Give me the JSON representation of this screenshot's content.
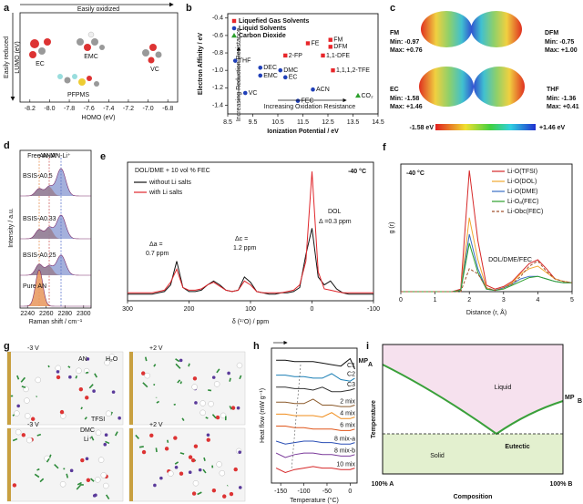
{
  "panel_labels": [
    "a",
    "b",
    "c",
    "d",
    "e",
    "f",
    "g",
    "h",
    "i"
  ],
  "panel_a": {
    "top_arrow": "Easily oxidized",
    "left_arrow": "Easily reduced",
    "ylabel": "LUMO (eV)",
    "xlabel": "HOMO (eV)",
    "xlim": [
      -8.3,
      -6.7
    ],
    "xticks": [
      -8.2,
      {
        "value": -8.0,
        "label": "-8.0"
      },
      -7.8,
      -7.6,
      -7.4,
      -7.2,
      {
        "value": -7.0,
        "label": "-7.0"
      },
      -6.8
    ],
    "molecules": [
      "EC",
      "EMC",
      "PFPMS",
      "VC"
    ]
  },
  "chart_data": [
    {
      "type": "scatter",
      "xlabel": "Ionization Potential / eV",
      "ylabel": "Electron Affinity / eV",
      "xlim": [
        8.5,
        14.5
      ],
      "xticks": [
        8.5,
        9.5,
        10.5,
        11.5,
        12.5,
        13.5,
        14.5
      ],
      "ylim": [
        -1.5,
        -0.35
      ],
      "yticks": [
        -1.4,
        -1.2,
        {
          "value": -1.0,
          "label": "-1.0"
        },
        -0.8,
        -0.6,
        -0.4
      ],
      "legend": "upper left",
      "annotations": [
        "Increasing Reduction Resistance",
        "Increasing Oxidation Resistance"
      ],
      "series": [
        {
          "name": "Liquefied Gas Solvents",
          "color": "#e8262a",
          "marker": "square",
          "labels": [
            "FE",
            "FM",
            "DFM",
            "1,1-DFE",
            "2-FP",
            "1,1,1,2-TFE"
          ],
          "x": [
            11.7,
            12.6,
            12.6,
            12.3,
            10.8,
            12.7
          ],
          "values": [
            -0.69,
            -0.65,
            -0.73,
            -0.83,
            -0.83,
            -1.0
          ]
        },
        {
          "name": "Liquid Solvents",
          "color": "#1f3fb8",
          "marker": "circle",
          "labels": [
            "THF",
            "DEC",
            "EMC",
            "DMC",
            "EC",
            "ACN",
            "VC",
            "FEC"
          ],
          "x": [
            8.8,
            9.8,
            9.8,
            10.6,
            10.8,
            11.9,
            9.2,
            11.3
          ],
          "values": [
            -0.89,
            -0.97,
            -1.06,
            -1.0,
            -1.08,
            -1.22,
            -1.26,
            -1.35
          ]
        },
        {
          "name": "Carbon Dioxide",
          "color": "#2ca02c",
          "marker": "triangle",
          "labels": [
            "CO₂"
          ],
          "x": [
            13.7
          ],
          "values": [
            -1.29
          ]
        }
      ]
    },
    {
      "type": "line",
      "title": "DOL/DME + 10 vol % FEC",
      "condition": "-40 °C",
      "xlabel": "δ (¹⁷O) / ppm",
      "xlim": [
        300,
        -100
      ],
      "xticks": [
        300,
        200,
        100,
        0,
        -100
      ],
      "ylim": [
        0,
        105
      ],
      "legend": "upper left",
      "annotations": [
        "DOL",
        "Δ =0.3 ppm",
        "Δa =",
        "0.7 ppm",
        "Δc =",
        "1.2 ppm"
      ],
      "x": [
        300,
        290,
        280,
        270,
        260,
        250,
        240,
        230,
        220,
        210,
        200,
        190,
        180,
        170,
        160,
        150,
        140,
        130,
        120,
        110,
        100,
        90,
        80,
        70,
        60,
        50,
        40,
        30,
        20,
        10,
        0,
        -10,
        -20,
        -30,
        -40,
        -50,
        -60,
        -70,
        -80,
        -90,
        -100
      ],
      "series": [
        {
          "name": "without Li salts",
          "color": "#111111",
          "values": [
            5,
            5,
            5,
            5,
            5,
            6,
            7,
            12,
            30,
            10,
            7,
            7,
            8,
            12,
            15,
            12,
            8,
            7,
            8,
            18,
            14,
            7,
            6,
            5,
            5,
            6,
            6,
            7,
            10,
            35,
            55,
            18,
            12,
            15,
            9,
            6,
            5,
            5,
            5,
            5,
            5
          ]
        },
        {
          "name": "with Li salts",
          "color": "#e0262b",
          "values": [
            6,
            6,
            6,
            6,
            6,
            7,
            8,
            14,
            24,
            10,
            8,
            8,
            9,
            12,
            14,
            11,
            8,
            7,
            8,
            15,
            12,
            7,
            6,
            6,
            6,
            6,
            7,
            8,
            12,
            30,
            98,
            22,
            9,
            8,
            7,
            6,
            6,
            6,
            6,
            6,
            6
          ]
        }
      ]
    },
    {
      "type": "line",
      "condition": "-40 °C",
      "xlabel": "Distance (r, Å)",
      "ylabel": "g (r)",
      "xlim": [
        0,
        5
      ],
      "xticks": [
        0,
        1,
        2,
        3,
        4,
        5
      ],
      "ylim": [
        0,
        100
      ],
      "legend": "upper right",
      "annotations": [
        "DOL/DME/FEC"
      ],
      "x": [
        0,
        0.25,
        0.5,
        0.75,
        1,
        1.25,
        1.5,
        1.75,
        2,
        2.25,
        2.5,
        2.75,
        3,
        3.25,
        3.5,
        3.75,
        4,
        4.25,
        4.5,
        4.75,
        5
      ],
      "series": [
        {
          "name": "Li-O(TFSI)",
          "color": "#d62728",
          "values": [
            0,
            0,
            0,
            0,
            0,
            0,
            0,
            2,
            95,
            40,
            5,
            2,
            4,
            8,
            15,
            22,
            25,
            18,
            10,
            8,
            7
          ]
        },
        {
          "name": "Li-O(DOL)",
          "color": "#f0a830",
          "values": [
            0,
            0,
            0,
            0,
            0,
            0,
            0,
            1,
            58,
            25,
            3,
            1,
            3,
            7,
            14,
            18,
            20,
            15,
            10,
            8,
            7
          ]
        },
        {
          "name": "Li-O(DME)",
          "color": "#3a6fc4",
          "values": [
            0,
            0,
            0,
            0,
            0,
            0,
            0,
            1,
            45,
            18,
            2,
            1,
            3,
            6,
            10,
            12,
            12,
            10,
            8,
            7,
            7
          ]
        },
        {
          "name": "Li-Oₐ(FEC)",
          "color": "#2ca02c",
          "values": [
            0,
            0,
            0,
            0,
            0,
            0,
            0,
            1,
            38,
            15,
            2,
            1,
            2,
            5,
            8,
            11,
            12,
            10,
            8,
            7,
            7
          ]
        },
        {
          "name": "Li-Obc(FEC)",
          "color": "#a0522d",
          "dashed": true,
          "values": [
            0,
            0,
            0,
            0,
            0,
            0,
            0,
            0,
            18,
            14,
            3,
            1,
            3,
            6,
            12,
            20,
            24,
            16,
            10,
            8,
            7
          ]
        }
      ]
    },
    {
      "type": "line",
      "xlabel": "Temperature (°C)",
      "ylabel": "Heat flow (mW g⁻¹)",
      "xlim": [
        -170,
        15
      ],
      "xticks": [
        -150,
        -100,
        -50,
        0
      ],
      "ylim": [
        10,
        100
      ],
      "legend": "line end",
      "x": [
        -160,
        -140,
        -120,
        -100,
        -80,
        -60,
        -40,
        -20,
        0,
        10
      ],
      "series": [
        {
          "name": "C1",
          "color": "#111111",
          "values": [
            92,
            92,
            91,
            91,
            91,
            90,
            89,
            88,
            93,
            86
          ]
        },
        {
          "name": "C2",
          "color": "#1b7fb5",
          "values": [
            82,
            82,
            81,
            81,
            80,
            80,
            83,
            79,
            78,
            80
          ]
        },
        {
          "name": "C3",
          "color": "#333333",
          "values": [
            74,
            74,
            73,
            73,
            72,
            74,
            71,
            71,
            72,
            73
          ]
        },
        {
          "name": "2 mix",
          "color": "#8b5a2b",
          "values": [
            64,
            64,
            63,
            63,
            66,
            62,
            62,
            61,
            61,
            62
          ]
        },
        {
          "name": "4 mix",
          "color": "#f08c1a",
          "values": [
            56,
            56,
            55,
            55,
            55,
            54,
            57,
            53,
            53,
            54
          ]
        },
        {
          "name": "6 mix",
          "color": "#e0561a",
          "values": [
            48,
            48,
            47,
            47,
            46,
            46,
            46,
            45,
            45,
            46
          ]
        },
        {
          "name": "8 mix-a",
          "color": "#2a4fb5",
          "values": [
            38,
            36,
            37,
            38,
            38,
            37,
            37,
            36,
            36,
            37
          ]
        },
        {
          "name": "8 mix-b",
          "color": "#7a3a9a",
          "values": [
            30,
            27,
            29,
            30,
            30,
            29,
            29,
            28,
            28,
            29
          ]
        },
        {
          "name": "10 mix",
          "color": "#d62728",
          "values": [
            20,
            17,
            19,
            20,
            21,
            20,
            20,
            19,
            19,
            20
          ]
        }
      ]
    }
  ],
  "panel_c": {
    "molecules": [
      {
        "name": "FM",
        "min": "Min: -0.97",
        "max": "Max: +0.76"
      },
      {
        "name": "DFM",
        "min": "Min: -0.75",
        "max": "Max: +1.00"
      },
      {
        "name": "EC",
        "min": "Min: -1.58",
        "max": "Max: +1.46"
      },
      {
        "name": "THF",
        "min": "Min: -1.36",
        "max": "Max: +0.41"
      }
    ],
    "scale_min": "-1.58 eV",
    "scale_max": "+1.46 eV"
  },
  "panel_d": {
    "peaks": [
      "Free AN",
      "AN-M⁺",
      "AN-Li⁺"
    ],
    "traces": [
      "BSIS-A0.5",
      "BSIS-A0.33",
      "BSIS-A0.25",
      "Pure AN"
    ],
    "ylabel": "Intensity / a.u.",
    "xlabel": "Raman shift / cm⁻¹",
    "xlim": [
      2232,
      2308
    ],
    "xticks": [
      2240,
      2260,
      2280,
      2300
    ]
  },
  "panel_g": {
    "labels": [
      "-3 V",
      "+2 V",
      "AN",
      "H₂O",
      "TFSI",
      "-3 V",
      "+2 V",
      "DMC",
      "Li⁺"
    ]
  },
  "panel_i": {
    "mp_a": {
      "main": "MP",
      "sub": "A"
    },
    "mp_b": {
      "main": "MP",
      "sub": "B"
    },
    "liquid": "Liquid",
    "solid": "Solid",
    "eutectic": "Eutectic",
    "ylabel": "Temperature",
    "xlabel": "Composition",
    "left": "100% A",
    "right": "100% B"
  }
}
